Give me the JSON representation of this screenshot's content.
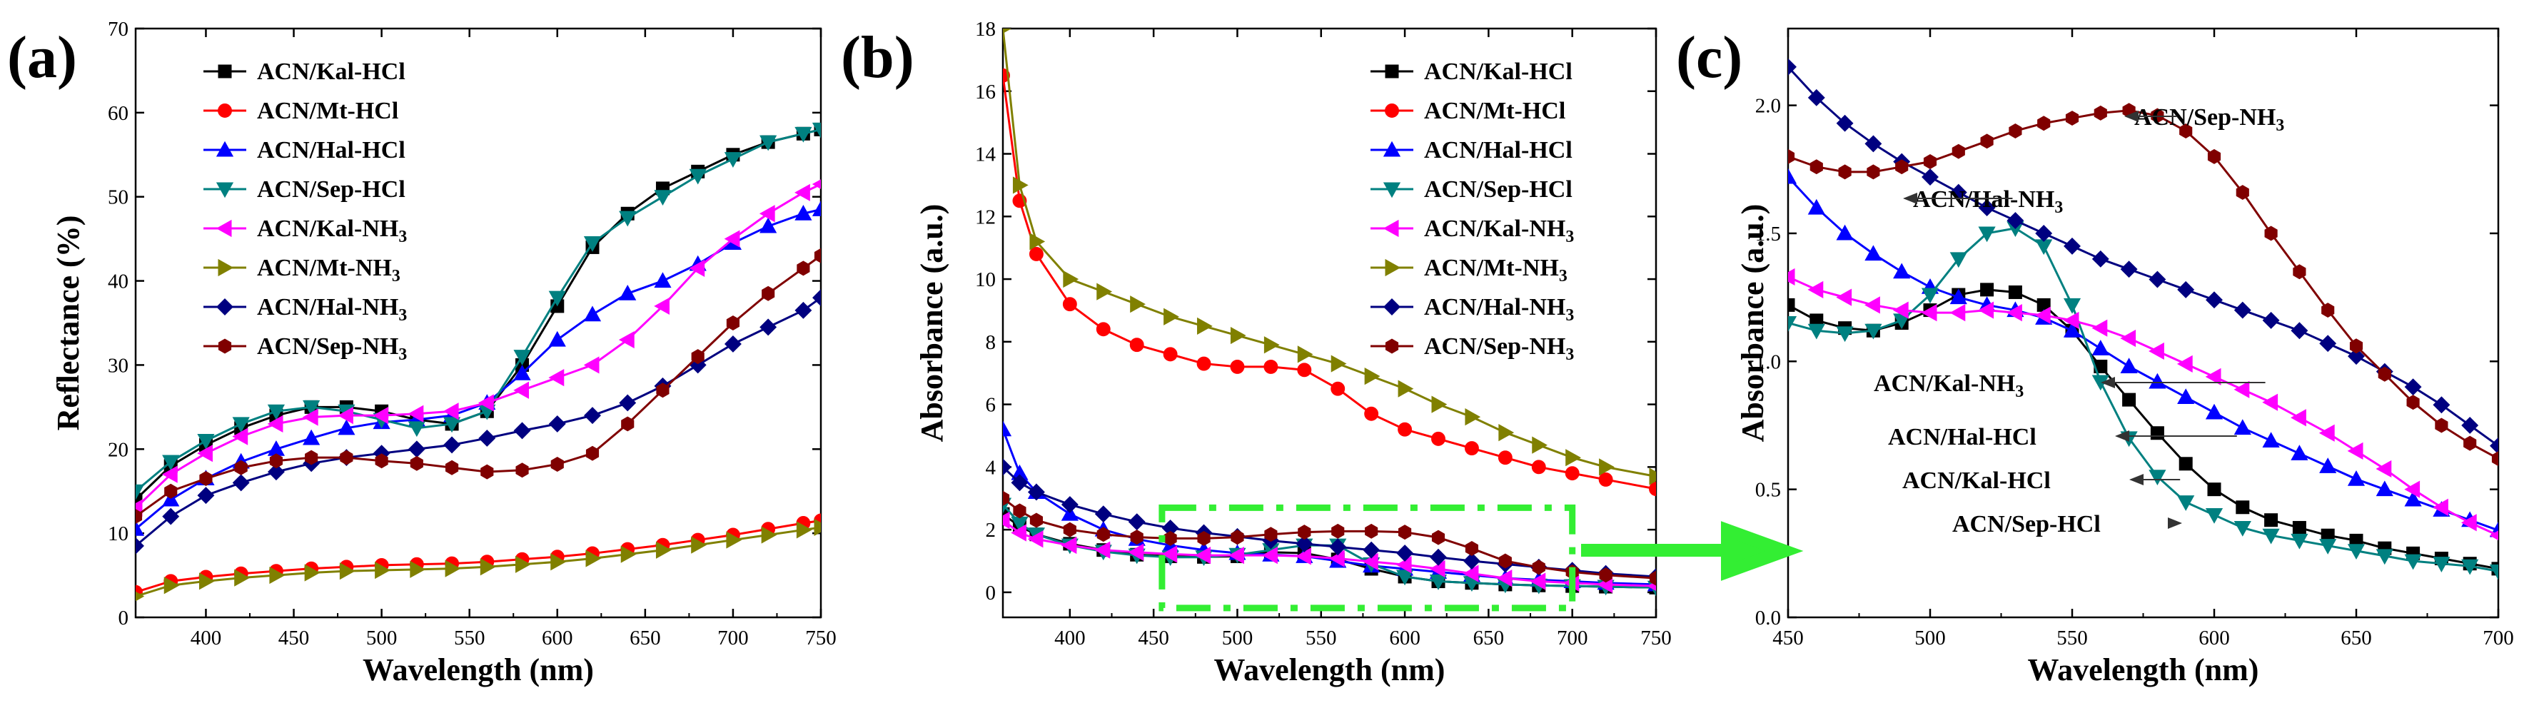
{
  "chart_data": [
    {
      "panel": "(a)",
      "type": "line",
      "xlabel": "Wavelength (nm)",
      "ylabel": "Reflectance (%)",
      "xlim": [
        360,
        750
      ],
      "ylim": [
        0,
        70
      ],
      "xticks": [
        400,
        450,
        500,
        550,
        600,
        650,
        700,
        750
      ],
      "yticks": [
        0,
        10,
        20,
        30,
        40,
        50,
        60,
        70
      ],
      "legend_position": "top-left",
      "x": [
        360,
        380,
        400,
        420,
        440,
        460,
        480,
        500,
        520,
        540,
        560,
        580,
        600,
        620,
        640,
        660,
        680,
        700,
        720,
        740,
        750
      ],
      "series": [
        {
          "name": "ACN/Kal-HCl",
          "color": "#000000",
          "marker": "square",
          "values": [
            14,
            18,
            20.5,
            22.5,
            24,
            25,
            25,
            24.5,
            23.5,
            23,
            24.5,
            30,
            37,
            44,
            48,
            51,
            53,
            55,
            56.5,
            57.5,
            58
          ]
        },
        {
          "name": "ACN/Mt-HCl",
          "color": "#ff0000",
          "marker": "circle",
          "values": [
            3,
            4.3,
            4.8,
            5.2,
            5.5,
            5.8,
            6,
            6.2,
            6.3,
            6.4,
            6.6,
            6.9,
            7.2,
            7.6,
            8.1,
            8.6,
            9.2,
            9.8,
            10.5,
            11.2,
            11.5
          ]
        },
        {
          "name": "ACN/Hal-HCl",
          "color": "#0000ff",
          "marker": "triangle-up",
          "values": [
            10.5,
            14,
            16.5,
            18.5,
            20,
            21.3,
            22.5,
            23.2,
            23.5,
            24,
            25.5,
            29,
            33,
            36,
            38.5,
            40,
            42,
            44.5,
            46.5,
            48,
            48.5
          ]
        },
        {
          "name": "ACN/Sep-HCl",
          "color": "#008080",
          "marker": "triangle-down",
          "values": [
            15,
            18.5,
            21,
            23,
            24.5,
            25,
            24.5,
            23.5,
            22.5,
            23,
            24.5,
            31,
            38,
            44.5,
            47.5,
            50,
            52.5,
            54.5,
            56.5,
            57.5,
            58
          ]
        },
        {
          "name": "ACN/Kal-NH3",
          "color": "#ff00ff",
          "marker": "triangle-left",
          "values": [
            13,
            17,
            19.5,
            21.5,
            23,
            23.8,
            24,
            24,
            24.2,
            24.5,
            25.5,
            27,
            28.5,
            30,
            33,
            37,
            41.5,
            45,
            48,
            50.5,
            51.5
          ]
        },
        {
          "name": "ACN/Mt-NH3",
          "color": "#808000",
          "marker": "triangle-right",
          "values": [
            2.5,
            3.8,
            4.3,
            4.7,
            5,
            5.3,
            5.5,
            5.6,
            5.7,
            5.8,
            6,
            6.3,
            6.6,
            7,
            7.5,
            8,
            8.6,
            9.2,
            9.8,
            10.4,
            10.7
          ]
        },
        {
          "name": "ACN/Hal-NH3",
          "color": "#000080",
          "marker": "diamond",
          "values": [
            8.5,
            12,
            14.5,
            16,
            17.3,
            18.3,
            19,
            19.5,
            20,
            20.5,
            21.3,
            22.2,
            23,
            24,
            25.5,
            27.5,
            30,
            32.5,
            34.5,
            36.5,
            38
          ]
        },
        {
          "name": "ACN/Sep-NH3",
          "color": "#800000",
          "marker": "hexagon",
          "values": [
            12,
            15,
            16.5,
            17.8,
            18.6,
            19,
            19,
            18.6,
            18.3,
            17.8,
            17.3,
            17.5,
            18.2,
            19.5,
            23,
            27,
            31,
            35,
            38.5,
            41.5,
            43
          ]
        }
      ]
    },
    {
      "panel": "(b)",
      "type": "line",
      "xlabel": "Wavelength (nm)",
      "ylabel": "Absorbance (a.u.)",
      "xlim": [
        360,
        750
      ],
      "ylim": [
        -0.8,
        18
      ],
      "xticks": [
        400,
        450,
        500,
        550,
        600,
        650,
        700,
        750
      ],
      "yticks": [
        0,
        2,
        4,
        6,
        8,
        10,
        12,
        14,
        16,
        18
      ],
      "legend_position": "top-right",
      "x": [
        360,
        370,
        380,
        400,
        420,
        440,
        460,
        480,
        500,
        520,
        540,
        560,
        580,
        600,
        620,
        640,
        660,
        680,
        700,
        720,
        750
      ],
      "series": [
        {
          "name": "ACN/Kal-HCl",
          "color": "#000000",
          "marker": "square",
          "values": [
            2.5,
            2.1,
            1.85,
            1.55,
            1.35,
            1.2,
            1.15,
            1.13,
            1.15,
            1.28,
            1.25,
            1.05,
            0.75,
            0.5,
            0.35,
            0.3,
            0.25,
            0.22,
            0.2,
            0.18,
            0.15
          ]
        },
        {
          "name": "ACN/Mt-HCl",
          "color": "#ff0000",
          "marker": "circle",
          "values": [
            16.5,
            12.5,
            10.8,
            9.2,
            8.4,
            7.9,
            7.6,
            7.3,
            7.2,
            7.2,
            7.1,
            6.5,
            5.7,
            5.2,
            4.9,
            4.6,
            4.3,
            4.0,
            3.8,
            3.6,
            3.3
          ]
        },
        {
          "name": "ACN/Hal-HCl",
          "color": "#0000ff",
          "marker": "triangle-up",
          "values": [
            5.2,
            3.8,
            3.2,
            2.5,
            2.0,
            1.7,
            1.5,
            1.35,
            1.25,
            1.2,
            1.15,
            1.0,
            0.85,
            0.75,
            0.65,
            0.55,
            0.45,
            0.4,
            0.35,
            0.3,
            0.25
          ]
        },
        {
          "name": "ACN/Sep-HCl",
          "color": "#008080",
          "marker": "triangle-down",
          "values": [
            2.8,
            2.2,
            1.85,
            1.5,
            1.3,
            1.18,
            1.12,
            1.12,
            1.2,
            1.35,
            1.5,
            1.5,
            0.9,
            0.5,
            0.35,
            0.3,
            0.25,
            0.22,
            0.2,
            0.18,
            0.15
          ]
        },
        {
          "name": "ACN/Kal-NH3",
          "color": "#ff00ff",
          "marker": "triangle-left",
          "values": [
            2.3,
            1.9,
            1.7,
            1.5,
            1.35,
            1.28,
            1.22,
            1.18,
            1.18,
            1.18,
            1.15,
            1.08,
            0.98,
            0.88,
            0.75,
            0.6,
            0.45,
            0.35,
            0.3,
            0.25,
            0.2
          ]
        },
        {
          "name": "ACN/Mt-NH3",
          "color": "#808000",
          "marker": "triangle-right",
          "values": [
            18,
            13,
            11.2,
            10,
            9.6,
            9.2,
            8.8,
            8.5,
            8.2,
            7.9,
            7.6,
            7.3,
            6.9,
            6.5,
            6.0,
            5.6,
            5.1,
            4.7,
            4.3,
            4.0,
            3.7
          ]
        },
        {
          "name": "ACN/Hal-NH3",
          "color": "#000080",
          "marker": "diamond",
          "values": [
            4.0,
            3.5,
            3.2,
            2.8,
            2.5,
            2.25,
            2.05,
            1.9,
            1.78,
            1.65,
            1.55,
            1.45,
            1.35,
            1.25,
            1.12,
            1.0,
            0.9,
            0.8,
            0.7,
            0.6,
            0.5
          ]
        },
        {
          "name": "ACN/Sep-NH3",
          "color": "#800000",
          "marker": "hexagon",
          "values": [
            3.0,
            2.6,
            2.3,
            2.0,
            1.85,
            1.76,
            1.72,
            1.72,
            1.76,
            1.85,
            1.92,
            1.95,
            1.95,
            1.92,
            1.75,
            1.4,
            1.0,
            0.8,
            0.65,
            0.55,
            0.45
          ]
        }
      ],
      "annotation": "dash-dot zoom box 455–700 nm, -0.5–2.7 a.u., arrow to panel (c)"
    },
    {
      "panel": "(c)",
      "type": "line",
      "xlabel": "Wavelength (nm)",
      "ylabel": "Absorbance (a.u.)",
      "xlim": [
        450,
        700
      ],
      "ylim": [
        0,
        2.3
      ],
      "xticks": [
        450,
        500,
        550,
        600,
        650,
        700
      ],
      "yticks": [
        0.0,
        0.5,
        1.0,
        1.5,
        2.0
      ],
      "yticklabels": [
        "0.0",
        "0.5",
        "1.0",
        "1.5",
        "2.0"
      ],
      "x": [
        450,
        460,
        470,
        480,
        490,
        500,
        510,
        520,
        530,
        540,
        550,
        560,
        570,
        580,
        590,
        600,
        610,
        620,
        630,
        640,
        650,
        660,
        670,
        680,
        690,
        700
      ],
      "series": [
        {
          "name": "ACN/Kal-HCl",
          "color": "#000000",
          "marker": "square",
          "values": [
            1.22,
            1.16,
            1.13,
            1.12,
            1.15,
            1.2,
            1.26,
            1.28,
            1.27,
            1.22,
            1.12,
            0.98,
            0.85,
            0.72,
            0.6,
            0.5,
            0.43,
            0.38,
            0.35,
            0.32,
            0.3,
            0.27,
            0.25,
            0.23,
            0.21,
            0.19
          ]
        },
        {
          "name": "ACN/Hal-HCl",
          "color": "#0000ff",
          "marker": "triangle-up",
          "values": [
            1.72,
            1.6,
            1.5,
            1.42,
            1.35,
            1.29,
            1.25,
            1.22,
            1.2,
            1.17,
            1.12,
            1.05,
            0.98,
            0.92,
            0.86,
            0.8,
            0.74,
            0.69,
            0.64,
            0.59,
            0.54,
            0.5,
            0.46,
            0.42,
            0.38,
            0.34
          ]
        },
        {
          "name": "ACN/Sep-HCl",
          "color": "#008080",
          "marker": "triangle-down",
          "values": [
            1.15,
            1.12,
            1.11,
            1.12,
            1.16,
            1.26,
            1.4,
            1.5,
            1.52,
            1.45,
            1.22,
            0.92,
            0.7,
            0.55,
            0.45,
            0.4,
            0.35,
            0.32,
            0.3,
            0.28,
            0.26,
            0.24,
            0.22,
            0.21,
            0.2,
            0.18
          ]
        },
        {
          "name": "ACN/Kal-NH3",
          "color": "#ff00ff",
          "marker": "triangle-left",
          "values": [
            1.33,
            1.28,
            1.25,
            1.22,
            1.2,
            1.19,
            1.19,
            1.2,
            1.19,
            1.18,
            1.16,
            1.13,
            1.09,
            1.04,
            0.99,
            0.94,
            0.89,
            0.84,
            0.78,
            0.72,
            0.65,
            0.58,
            0.5,
            0.43,
            0.37,
            0.32
          ]
        },
        {
          "name": "ACN/Hal-NH3",
          "color": "#000080",
          "marker": "diamond",
          "values": [
            2.15,
            2.03,
            1.93,
            1.85,
            1.78,
            1.72,
            1.66,
            1.6,
            1.55,
            1.5,
            1.45,
            1.4,
            1.36,
            1.32,
            1.28,
            1.24,
            1.2,
            1.16,
            1.12,
            1.07,
            1.02,
            0.96,
            0.9,
            0.83,
            0.75,
            0.67
          ]
        },
        {
          "name": "ACN/Sep-NH3",
          "color": "#800000",
          "marker": "hexagon",
          "values": [
            1.8,
            1.76,
            1.74,
            1.74,
            1.76,
            1.78,
            1.82,
            1.86,
            1.9,
            1.93,
            1.95,
            1.97,
            1.98,
            1.96,
            1.9,
            1.8,
            1.66,
            1.5,
            1.35,
            1.2,
            1.06,
            0.95,
            0.84,
            0.75,
            0.68,
            0.62
          ]
        }
      ],
      "annotations": [
        {
          "text": "ACN/Sep-NH3",
          "points_to": {
            "x": 585,
            "y": 1.96
          }
        },
        {
          "text": "ACN/Hal-NH3",
          "points_to": {
            "x": 527,
            "y": 1.56
          }
        },
        {
          "text": "ACN/Kal-NH3",
          "points_to": {
            "x": 620,
            "y": 0.84
          }
        },
        {
          "text": "ACN/Hal-HCl",
          "points_to": {
            "x": 610,
            "y": 0.74
          }
        },
        {
          "text": "ACN/Kal-HCl",
          "points_to": {
            "x": 590,
            "y": 0.6
          }
        },
        {
          "text": "ACN/Sep-HCl",
          "points_to": {
            "x": 590,
            "y": 0.45
          }
        }
      ]
    }
  ]
}
